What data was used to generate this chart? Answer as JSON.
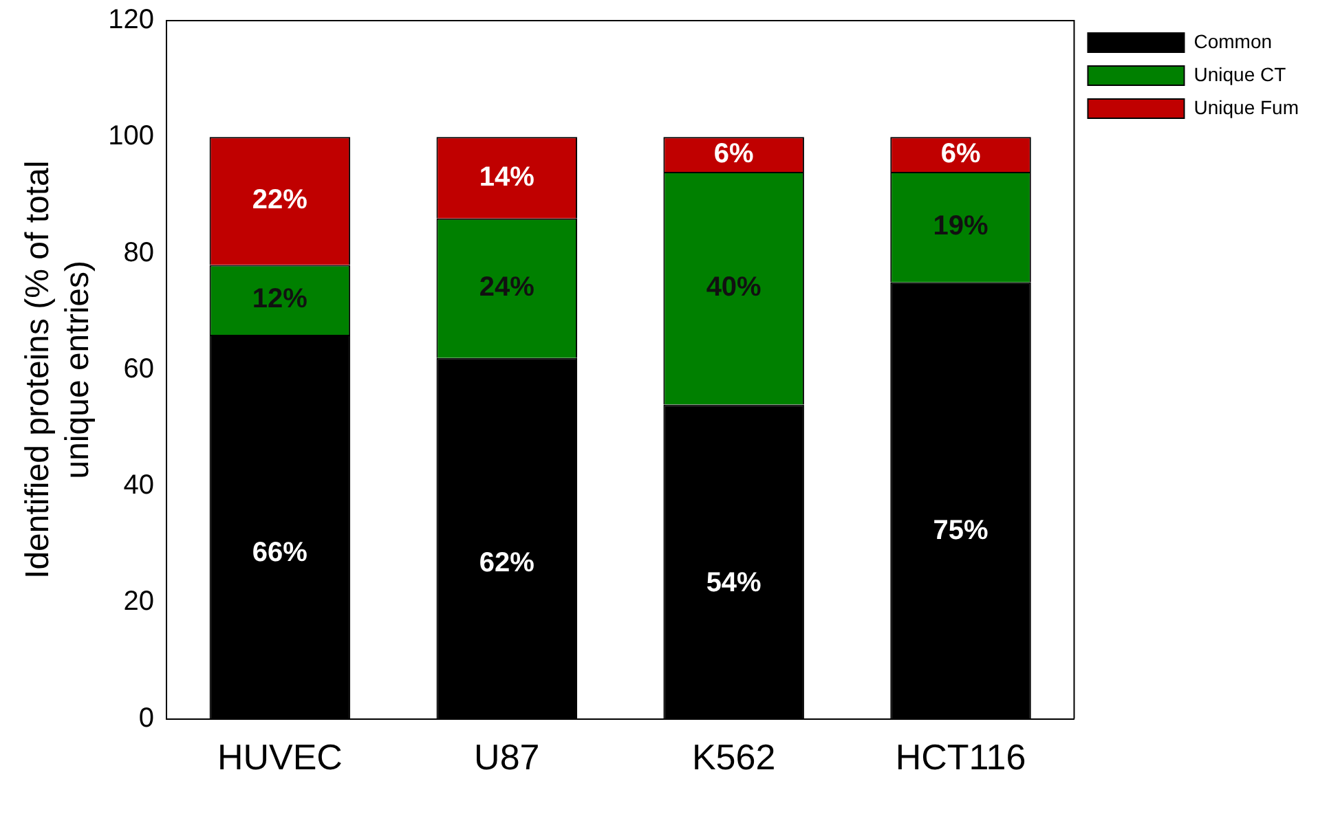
{
  "chart_data": {
    "type": "bar",
    "stacked": true,
    "ylabel": "Identified proteins (% of total unique entries)",
    "categories": [
      "HUVEC",
      "U87",
      "K562",
      "HCT116"
    ],
    "ylim": [
      0,
      120
    ],
    "yticks": [
      0,
      20,
      40,
      60,
      80,
      100,
      120
    ],
    "grid": false,
    "legend": "top right",
    "series": [
      {
        "name": "Common",
        "color": "#000000",
        "values": [
          66,
          62,
          54,
          75
        ],
        "value_labels": [
          "66%",
          "62%",
          "54%",
          "75%"
        ]
      },
      {
        "name": "Unique CT",
        "color": "#008000",
        "values": [
          12,
          24,
          40,
          19
        ],
        "value_labels": [
          "12%",
          "24%",
          "40%",
          "19%"
        ]
      },
      {
        "name": "Unique Fum",
        "color": "#c00000",
        "values": [
          22,
          14,
          6,
          6
        ],
        "value_labels": [
          "22%",
          "14%",
          "6%",
          "6%"
        ]
      }
    ]
  }
}
